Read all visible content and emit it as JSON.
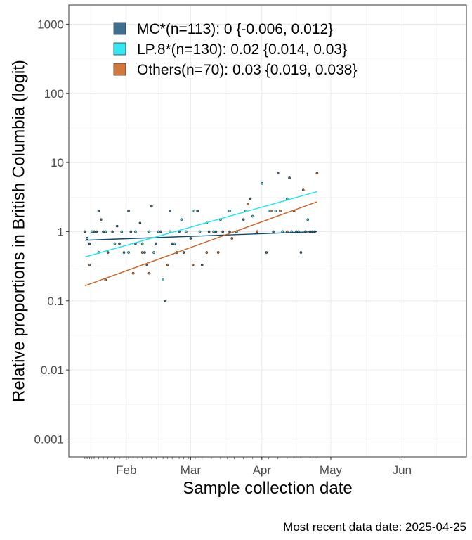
{
  "chart_data": {
    "type": "scatter",
    "ylabel": "Relative proportions in British Columbia (logit)",
    "xlabel": "Sample collection date",
    "caption": "Most recent data date: 2025-04-25",
    "y_scale": "log",
    "ylim": [
      0.00055,
      1900
    ],
    "xlim": [
      "2025-01-07",
      "2025-06-29"
    ],
    "grid": true,
    "legend_position": "top-left",
    "y_ticks": [
      {
        "value": 0.001,
        "label": "0.001"
      },
      {
        "value": 0.01,
        "label": "0.01"
      },
      {
        "value": 0.1,
        "label": "0.1"
      },
      {
        "value": 1,
        "label": "1"
      },
      {
        "value": 10,
        "label": "10"
      },
      {
        "value": 100,
        "label": "100"
      },
      {
        "value": 1000,
        "label": "1000"
      }
    ],
    "x_ticks": [
      {
        "value": "2025-02-01",
        "label": "Feb"
      },
      {
        "value": "2025-03-01",
        "label": "Mar"
      },
      {
        "value": "2025-04-01",
        "label": "Apr"
      },
      {
        "value": "2025-05-01",
        "label": "May"
      },
      {
        "value": "2025-06-01",
        "label": "Jun"
      }
    ],
    "rug_dates": [
      "2025-01-14",
      "2025-01-15",
      "2025-01-16",
      "2025-01-17",
      "2025-01-18",
      "2025-01-20",
      "2025-01-22",
      "2025-01-24",
      "2025-01-27",
      "2025-01-29",
      "2025-01-31",
      "2025-02-02",
      "2025-02-04",
      "2025-02-06",
      "2025-02-08",
      "2025-02-10",
      "2025-02-12",
      "2025-02-14",
      "2025-02-17",
      "2025-02-19",
      "2025-02-21",
      "2025-02-24",
      "2025-02-26",
      "2025-02-28",
      "2025-03-03",
      "2025-03-06",
      "2025-03-10",
      "2025-03-14",
      "2025-03-17",
      "2025-03-20",
      "2025-03-24",
      "2025-03-28",
      "2025-04-01",
      "2025-04-04",
      "2025-04-08",
      "2025-04-12",
      "2025-04-15",
      "2025-04-18",
      "2025-04-22",
      "2025-04-25"
    ],
    "series": [
      {
        "name": "MC*",
        "legend_label": "MC*(n=113): 0 {-0.006, 0.012}",
        "color": "#3d6f91",
        "line_color": "#0b4a73",
        "fit_line": [
          {
            "x": "2025-01-14",
            "y": 0.75
          },
          {
            "x": "2025-04-25",
            "y": 1.0
          }
        ],
        "points": [
          {
            "x": "2025-01-14",
            "y": 1
          },
          {
            "x": "2025-01-15",
            "y": 0.8
          },
          {
            "x": "2025-01-16",
            "y": 0.67
          },
          {
            "x": "2025-01-18",
            "y": 1
          },
          {
            "x": "2025-01-19",
            "y": 1
          },
          {
            "x": "2025-01-20",
            "y": 2
          },
          {
            "x": "2025-01-21",
            "y": 1.5
          },
          {
            "x": "2025-01-22",
            "y": 1
          },
          {
            "x": "2025-01-24",
            "y": 0.5
          },
          {
            "x": "2025-01-26",
            "y": 1
          },
          {
            "x": "2025-01-28",
            "y": 1.2
          },
          {
            "x": "2025-01-29",
            "y": 0.67
          },
          {
            "x": "2025-01-31",
            "y": 0.5
          },
          {
            "x": "2025-02-02",
            "y": 2
          },
          {
            "x": "2025-02-03",
            "y": 1
          },
          {
            "x": "2025-02-05",
            "y": 0.67
          },
          {
            "x": "2025-02-07",
            "y": 1.33
          },
          {
            "x": "2025-02-09",
            "y": 0.5
          },
          {
            "x": "2025-02-10",
            "y": 0.33
          },
          {
            "x": "2025-02-12",
            "y": 2.33
          },
          {
            "x": "2025-02-14",
            "y": 0.67
          },
          {
            "x": "2025-02-16",
            "y": 1
          },
          {
            "x": "2025-02-18",
            "y": 0.1
          },
          {
            "x": "2025-02-20",
            "y": 2
          },
          {
            "x": "2025-02-21",
            "y": 0.67
          },
          {
            "x": "2025-02-24",
            "y": 1
          },
          {
            "x": "2025-02-26",
            "y": 0.5
          },
          {
            "x": "2025-03-01",
            "y": 0.8
          },
          {
            "x": "2025-03-04",
            "y": 2
          },
          {
            "x": "2025-03-06",
            "y": 0.33
          },
          {
            "x": "2025-03-09",
            "y": 1
          },
          {
            "x": "2025-03-12",
            "y": 1
          },
          {
            "x": "2025-03-15",
            "y": 1
          },
          {
            "x": "2025-03-18",
            "y": 1
          },
          {
            "x": "2025-03-21",
            "y": 1
          },
          {
            "x": "2025-03-24",
            "y": 1.5
          },
          {
            "x": "2025-03-27",
            "y": 3
          },
          {
            "x": "2025-03-30",
            "y": 1
          },
          {
            "x": "2025-04-03",
            "y": 0.5
          },
          {
            "x": "2025-04-06",
            "y": 1
          },
          {
            "x": "2025-04-08",
            "y": 7
          },
          {
            "x": "2025-04-10",
            "y": 1
          },
          {
            "x": "2025-04-13",
            "y": 6
          },
          {
            "x": "2025-04-16",
            "y": 1
          },
          {
            "x": "2025-04-18",
            "y": 0.5
          },
          {
            "x": "2025-04-20",
            "y": 1
          },
          {
            "x": "2025-04-24",
            "y": 1
          }
        ]
      },
      {
        "name": "LP.8*",
        "legend_label": "LP.8*(n=130): 0.02 {0.014, 0.03}",
        "color": "#33e8f0",
        "line_color": "#1de3f2",
        "fit_line": [
          {
            "x": "2025-01-14",
            "y": 0.43
          },
          {
            "x": "2025-04-25",
            "y": 3.8
          }
        ],
        "points": [
          {
            "x": "2025-01-15",
            "y": 0.8
          },
          {
            "x": "2025-01-17",
            "y": 1
          },
          {
            "x": "2025-01-20",
            "y": 0.5
          },
          {
            "x": "2025-01-23",
            "y": 1
          },
          {
            "x": "2025-01-27",
            "y": 0.67
          },
          {
            "x": "2025-01-30",
            "y": 1
          },
          {
            "x": "2025-02-02",
            "y": 0.5
          },
          {
            "x": "2025-02-05",
            "y": 1
          },
          {
            "x": "2025-02-08",
            "y": 0.67
          },
          {
            "x": "2025-02-11",
            "y": 1
          },
          {
            "x": "2025-02-13",
            "y": 0.5
          },
          {
            "x": "2025-02-15",
            "y": 1
          },
          {
            "x": "2025-02-17",
            "y": 0.2
          },
          {
            "x": "2025-02-20",
            "y": 1
          },
          {
            "x": "2025-02-22",
            "y": 0.67
          },
          {
            "x": "2025-02-25",
            "y": 1.5
          },
          {
            "x": "2025-02-27",
            "y": 1
          },
          {
            "x": "2025-03-02",
            "y": 2
          },
          {
            "x": "2025-03-05",
            "y": 1
          },
          {
            "x": "2025-03-08",
            "y": 1.33
          },
          {
            "x": "2025-03-11",
            "y": 1
          },
          {
            "x": "2025-03-14",
            "y": 1.5
          },
          {
            "x": "2025-03-18",
            "y": 2
          },
          {
            "x": "2025-03-21",
            "y": 1
          },
          {
            "x": "2025-03-25",
            "y": 2
          },
          {
            "x": "2025-03-28",
            "y": 1.67
          },
          {
            "x": "2025-04-01",
            "y": 5
          },
          {
            "x": "2025-04-04",
            "y": 2
          },
          {
            "x": "2025-04-07",
            "y": 2
          },
          {
            "x": "2025-04-10",
            "y": 1
          },
          {
            "x": "2025-04-12",
            "y": 3
          },
          {
            "x": "2025-04-14",
            "y": 1
          },
          {
            "x": "2025-04-17",
            "y": 1
          },
          {
            "x": "2025-04-20",
            "y": 1
          },
          {
            "x": "2025-04-21",
            "y": 1.5
          },
          {
            "x": "2025-04-23",
            "y": 1
          }
        ]
      },
      {
        "name": "Others",
        "legend_label": "Others(n=70): 0.03 {0.019, 0.038}",
        "color": "#d2783a",
        "line_color": "#cc5c1a",
        "fit_line": [
          {
            "x": "2025-01-14",
            "y": 0.165
          },
          {
            "x": "2025-04-25",
            "y": 2.7
          }
        ],
        "points": [
          {
            "x": "2025-01-16",
            "y": 0.33
          },
          {
            "x": "2025-01-23",
            "y": 0.2
          },
          {
            "x": "2025-02-04",
            "y": 0.25
          },
          {
            "x": "2025-02-08",
            "y": 0.5
          },
          {
            "x": "2025-02-11",
            "y": 0.25
          },
          {
            "x": "2025-02-19",
            "y": 0.33
          },
          {
            "x": "2025-02-23",
            "y": 0.5
          },
          {
            "x": "2025-03-02",
            "y": 0.33
          },
          {
            "x": "2025-03-08",
            "y": 0.5
          },
          {
            "x": "2025-03-13",
            "y": 0.5
          },
          {
            "x": "2025-03-19",
            "y": 0.8
          },
          {
            "x": "2025-03-26",
            "y": 2.5
          },
          {
            "x": "2025-03-30",
            "y": 1
          },
          {
            "x": "2025-04-05",
            "y": 2
          },
          {
            "x": "2025-04-09",
            "y": 2
          },
          {
            "x": "2025-04-12",
            "y": 1
          },
          {
            "x": "2025-04-15",
            "y": 2
          },
          {
            "x": "2025-04-19",
            "y": 4
          },
          {
            "x": "2025-04-22",
            "y": 1
          },
          {
            "x": "2025-04-25",
            "y": 7
          }
        ]
      }
    ]
  }
}
